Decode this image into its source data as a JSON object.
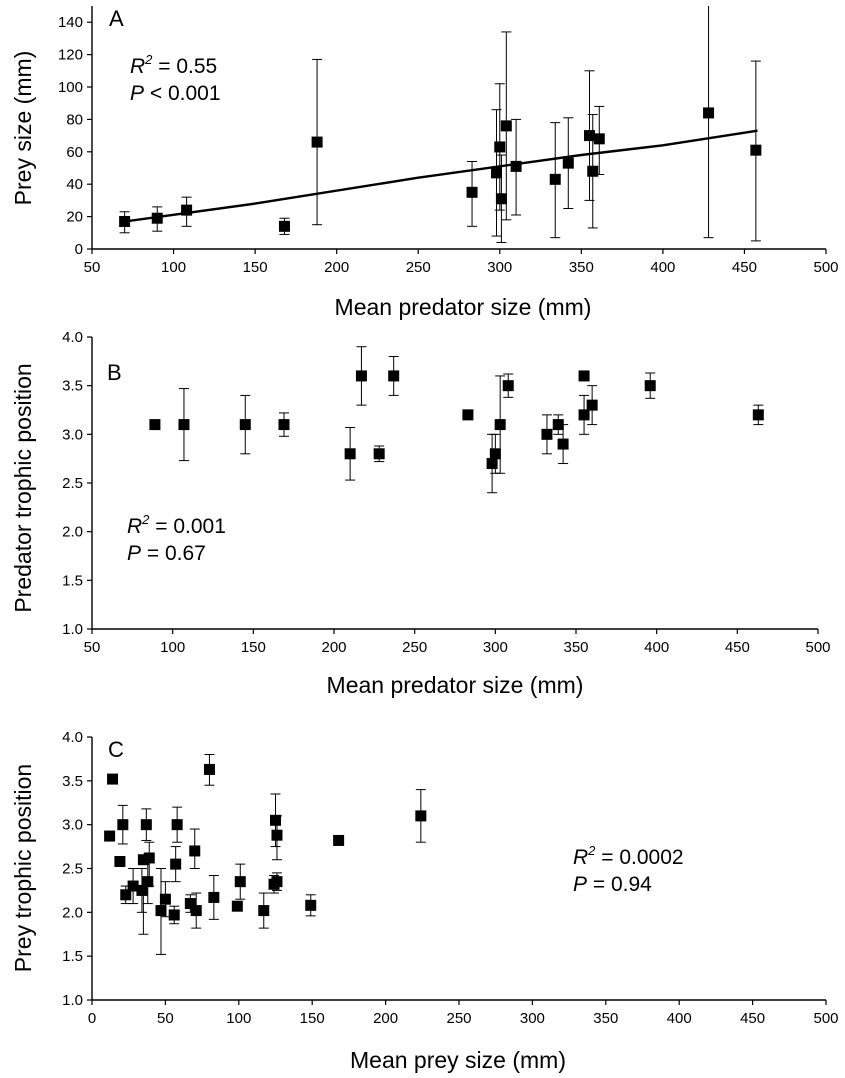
{
  "chart_data": [
    {
      "panel": "A",
      "type": "scatter",
      "xlabel": "Mean predator size (mm)",
      "ylabel": "Prey size (mm)",
      "xlim": [
        50,
        500
      ],
      "ylim": [
        0,
        150
      ],
      "xticks": [
        50,
        100,
        150,
        200,
        250,
        300,
        350,
        400,
        450,
        500
      ],
      "yticks": [
        0,
        20,
        40,
        60,
        80,
        100,
        120,
        140
      ],
      "stats": {
        "r2_label": "R",
        "r2_sup": "2",
        "r2_value": " = 0.55",
        "p_label": "P",
        "p_value": " < 0.001"
      },
      "fit_line": [
        [
          70,
          17
        ],
        [
          150,
          28
        ],
        [
          250,
          44
        ],
        [
          350,
          58
        ],
        [
          400,
          64
        ],
        [
          458,
          73
        ]
      ],
      "points": [
        {
          "x": 70,
          "y": 17,
          "lo": 10,
          "hi": 23
        },
        {
          "x": 90,
          "y": 19,
          "lo": 11,
          "hi": 26
        },
        {
          "x": 108,
          "y": 24,
          "lo": 14,
          "hi": 32
        },
        {
          "x": 168,
          "y": 14,
          "lo": 9,
          "hi": 19
        },
        {
          "x": 188,
          "y": 66,
          "lo": 15,
          "hi": 117
        },
        {
          "x": 283,
          "y": 35,
          "lo": 14,
          "hi": 54
        },
        {
          "x": 298,
          "y": 47,
          "lo": 8,
          "hi": 86
        },
        {
          "x": 300,
          "y": 63,
          "lo": 24,
          "hi": 102
        },
        {
          "x": 301,
          "y": 31,
          "lo": 4,
          "hi": 58
        },
        {
          "x": 304,
          "y": 76,
          "lo": 18,
          "hi": 134
        },
        {
          "x": 310,
          "y": 51,
          "lo": 21,
          "hi": 80
        },
        {
          "x": 334,
          "y": 43,
          "lo": 7,
          "hi": 78
        },
        {
          "x": 342,
          "y": 53,
          "lo": 25,
          "hi": 81
        },
        {
          "x": 355,
          "y": 70,
          "lo": 30,
          "hi": 110
        },
        {
          "x": 357,
          "y": 48,
          "lo": 13,
          "hi": 83
        },
        {
          "x": 361,
          "y": 68,
          "lo": 46,
          "hi": 88
        },
        {
          "x": 428,
          "y": 84,
          "lo": 7,
          "hi": 160
        },
        {
          "x": 457,
          "y": 61,
          "lo": 5,
          "hi": 116
        }
      ]
    },
    {
      "panel": "B",
      "type": "scatter",
      "xlabel": "Mean predator size (mm)",
      "ylabel": "Predator trophic position",
      "xlim": [
        50,
        500
      ],
      "ylim": [
        1.0,
        4.0
      ],
      "xticks": [
        50,
        100,
        150,
        200,
        250,
        300,
        350,
        400,
        450,
        500
      ],
      "yticks": [
        "1.0",
        "1.5",
        "2.0",
        "2.5",
        "3.0",
        "3.5",
        "4.0"
      ],
      "stats": {
        "r2_label": "R",
        "r2_sup": "2",
        "r2_value": " = 0.001",
        "p_label": "P",
        "p_value": " = 0.67"
      },
      "points": [
        {
          "x": 89,
          "y": 3.1,
          "lo": 3.1,
          "hi": 3.1
        },
        {
          "x": 107,
          "y": 3.1,
          "lo": 2.73,
          "hi": 3.47
        },
        {
          "x": 145,
          "y": 3.1,
          "lo": 2.8,
          "hi": 3.4
        },
        {
          "x": 169,
          "y": 3.1,
          "lo": 2.98,
          "hi": 3.22
        },
        {
          "x": 210,
          "y": 2.8,
          "lo": 2.53,
          "hi": 3.07
        },
        {
          "x": 217,
          "y": 3.6,
          "lo": 3.3,
          "hi": 3.9
        },
        {
          "x": 228,
          "y": 2.8,
          "lo": 2.72,
          "hi": 2.88
        },
        {
          "x": 237,
          "y": 3.6,
          "lo": 3.4,
          "hi": 3.8
        },
        {
          "x": 283,
          "y": 3.2,
          "lo": 3.2,
          "hi": 3.2
        },
        {
          "x": 298,
          "y": 2.7,
          "lo": 2.4,
          "hi": 3.0
        },
        {
          "x": 300,
          "y": 2.8,
          "lo": 2.6,
          "hi": 3.0
        },
        {
          "x": 303,
          "y": 3.1,
          "lo": 2.6,
          "hi": 3.6
        },
        {
          "x": 308,
          "y": 3.5,
          "lo": 3.38,
          "hi": 3.62
        },
        {
          "x": 332,
          "y": 3.0,
          "lo": 2.8,
          "hi": 3.2
        },
        {
          "x": 339,
          "y": 3.1,
          "lo": 3.0,
          "hi": 3.2
        },
        {
          "x": 342,
          "y": 2.9,
          "lo": 2.7,
          "hi": 3.1
        },
        {
          "x": 355,
          "y": 3.2,
          "lo": 3.0,
          "hi": 3.4
        },
        {
          "x": 355,
          "y": 3.6,
          "lo": 3.6,
          "hi": 3.6
        },
        {
          "x": 360,
          "y": 3.3,
          "lo": 3.1,
          "hi": 3.5
        },
        {
          "x": 396,
          "y": 3.5,
          "lo": 3.37,
          "hi": 3.63
        },
        {
          "x": 463,
          "y": 3.2,
          "lo": 3.1,
          "hi": 3.3
        }
      ]
    },
    {
      "panel": "C",
      "type": "scatter",
      "xlabel": "Mean prey size (mm)",
      "ylabel": "Prey trophic position",
      "xlim": [
        0,
        500
      ],
      "ylim": [
        1.0,
        4.0
      ],
      "xticks": [
        0,
        50,
        100,
        150,
        200,
        250,
        300,
        350,
        400,
        450,
        500
      ],
      "yticks": [
        "1.0",
        "1.5",
        "2.0",
        "2.5",
        "3.0",
        "3.5",
        "4.0"
      ],
      "stats": {
        "r2_label": "R",
        "r2_sup": "2",
        "r2_value": " = 0.0002",
        "p_label": "P",
        "p_value": " = 0.94"
      },
      "points": [
        {
          "x": 12,
          "y": 2.87,
          "lo": 2.87,
          "hi": 2.87
        },
        {
          "x": 14,
          "y": 3.52,
          "lo": 3.52,
          "hi": 3.52
        },
        {
          "x": 19,
          "y": 2.58,
          "lo": 2.58,
          "hi": 2.58
        },
        {
          "x": 21,
          "y": 3.0,
          "lo": 2.78,
          "hi": 3.22
        },
        {
          "x": 23,
          "y": 2.2,
          "lo": 2.1,
          "hi": 2.3
        },
        {
          "x": 28,
          "y": 2.3,
          "lo": 2.1,
          "hi": 2.5
        },
        {
          "x": 34,
          "y": 2.25,
          "lo": 2.0,
          "hi": 2.5
        },
        {
          "x": 35,
          "y": 2.6,
          "lo": 1.75,
          "hi": 2.3
        },
        {
          "x": 37,
          "y": 3.0,
          "lo": 2.82,
          "hi": 3.18
        },
        {
          "x": 38,
          "y": 2.35,
          "lo": 2.1,
          "hi": 2.6
        },
        {
          "x": 39,
          "y": 2.62,
          "lo": 2.3,
          "hi": 2.8
        },
        {
          "x": 47,
          "y": 2.02,
          "lo": 1.52,
          "hi": 2.5
        },
        {
          "x": 50,
          "y": 2.15,
          "lo": 1.95,
          "hi": 2.35
        },
        {
          "x": 56,
          "y": 1.97,
          "lo": 1.87,
          "hi": 2.07
        },
        {
          "x": 57,
          "y": 2.55,
          "lo": 2.35,
          "hi": 2.75
        },
        {
          "x": 58,
          "y": 3.0,
          "lo": 2.8,
          "hi": 3.2
        },
        {
          "x": 67,
          "y": 2.1,
          "lo": 2.0,
          "hi": 2.2
        },
        {
          "x": 70,
          "y": 2.7,
          "lo": 2.5,
          "hi": 2.95
        },
        {
          "x": 71,
          "y": 2.02,
          "lo": 1.82,
          "hi": 2.22
        },
        {
          "x": 80,
          "y": 3.63,
          "lo": 3.45,
          "hi": 3.8
        },
        {
          "x": 83,
          "y": 2.17,
          "lo": 1.92,
          "hi": 2.42
        },
        {
          "x": 99,
          "y": 2.07,
          "lo": 2.07,
          "hi": 2.07
        },
        {
          "x": 101,
          "y": 2.35,
          "lo": 2.15,
          "hi": 2.55
        },
        {
          "x": 117,
          "y": 2.02,
          "lo": 1.82,
          "hi": 2.22
        },
        {
          "x": 124,
          "y": 2.32,
          "lo": 2.22,
          "hi": 2.42
        },
        {
          "x": 125,
          "y": 3.05,
          "lo": 2.75,
          "hi": 3.35
        },
        {
          "x": 126,
          "y": 2.88,
          "lo": 2.6,
          "hi": 3.1
        },
        {
          "x": 126,
          "y": 2.35,
          "lo": 2.25,
          "hi": 2.45
        },
        {
          "x": 149,
          "y": 2.08,
          "lo": 1.96,
          "hi": 2.2
        },
        {
          "x": 168,
          "y": 2.82,
          "lo": 2.82,
          "hi": 2.82
        },
        {
          "x": 224,
          "y": 3.1,
          "lo": 2.8,
          "hi": 3.4
        }
      ]
    }
  ]
}
